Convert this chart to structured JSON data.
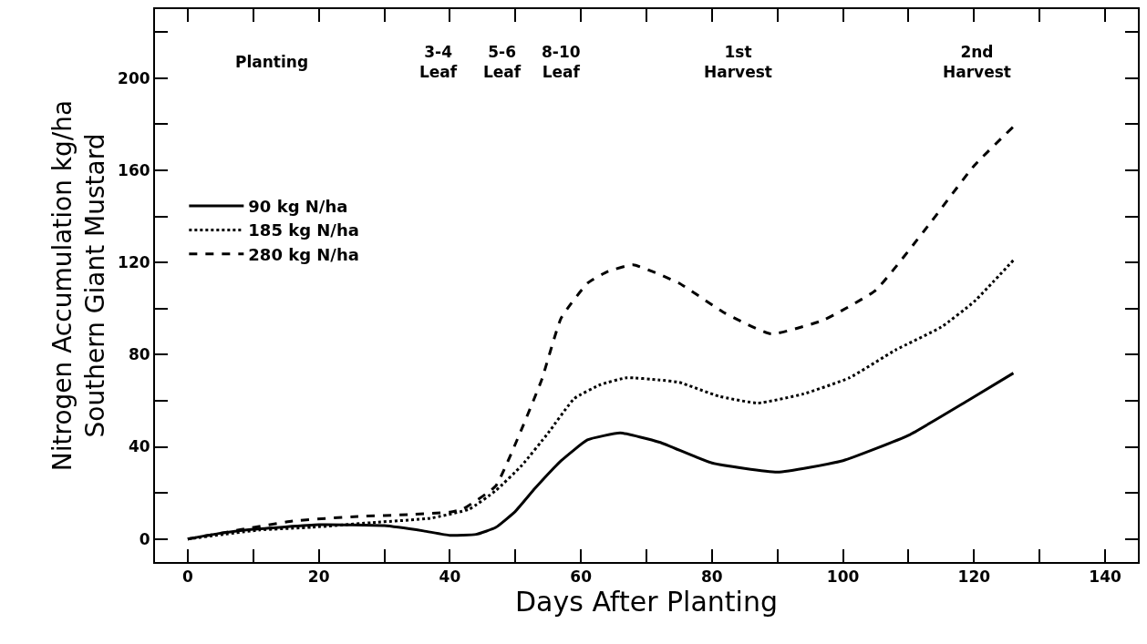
{
  "chart_data": {
    "type": "line",
    "xlabel": "Days After Planting",
    "ylabel": "Nitrogen Accumulation kg/ha\nSouthern Giant Mustard",
    "xlim": [
      -5,
      145
    ],
    "ylim": [
      -10,
      230
    ],
    "xticks": [
      0,
      {
        "value": 10,
        "label": null
      },
      20,
      {
        "value": 30,
        "label": null
      },
      40,
      {
        "value": 50,
        "label": null
      },
      60,
      {
        "value": 70,
        "label": null
      },
      80,
      {
        "value": 90,
        "label": null
      },
      100,
      {
        "value": 110,
        "label": null
      },
      120,
      {
        "value": 130,
        "label": null
      },
      140
    ],
    "yticks": [
      0,
      {
        "value": 20,
        "label": null
      },
      40,
      {
        "value": 60,
        "label": null
      },
      80,
      {
        "value": 100,
        "label": null
      },
      120,
      {
        "value": 140,
        "label": null
      },
      160,
      {
        "value": 180,
        "label": null
      },
      200,
      {
        "value": 220,
        "label": null
      }
    ],
    "grid": false,
    "legend": "left",
    "marker": "none",
    "series": [
      {
        "name": "90 kg N/ha",
        "color": "#000000",
        "line_style": "solid",
        "x": [
          0,
          5,
          10,
          20,
          30,
          36,
          40,
          44,
          47,
          50,
          53,
          57,
          61,
          66,
          72,
          80,
          90,
          100,
          110,
          119,
          126
        ],
        "values": [
          0,
          2.5,
          4.2,
          6.2,
          5.8,
          3.5,
          1.6,
          2,
          5,
          12,
          22,
          34,
          43,
          46,
          42,
          33,
          29,
          34,
          45,
          60,
          72
        ]
      },
      {
        "name": "185 kg N/ha",
        "color": "#000000",
        "line_style": "dotted",
        "x": [
          0,
          11,
          19,
          29,
          37,
          43,
          47,
          51,
          55,
          59,
          63,
          67,
          72,
          75,
          81,
          87,
          94,
          101,
          108,
          115,
          120,
          126
        ],
        "values": [
          0,
          3.9,
          5.1,
          7.3,
          9,
          13,
          21,
          32,
          46,
          61,
          67,
          70,
          69,
          68,
          62,
          59,
          63,
          70,
          82,
          92,
          103,
          121
        ]
      },
      {
        "name": "280 kg N/ha",
        "color": "#000000",
        "line_style": "dashed",
        "x": [
          0,
          8,
          16,
          26,
          34,
          40,
          42,
          47,
          51,
          54,
          57,
          61,
          64,
          68,
          75,
          82,
          89,
          97,
          105,
          113,
          120,
          126
        ],
        "values": [
          0,
          4,
          7.8,
          9.8,
          10.6,
          11.7,
          13,
          23,
          48,
          69,
          96,
          111,
          116,
          119,
          111,
          98,
          89,
          95,
          108,
          136,
          162,
          179
        ]
      }
    ],
    "annotations": [
      "Planting",
      "3-4\nLeaf",
      "5-6\nLeaf",
      "8-10\nLeaf",
      "1st\nHarvest",
      "2nd\nHarvest"
    ]
  }
}
